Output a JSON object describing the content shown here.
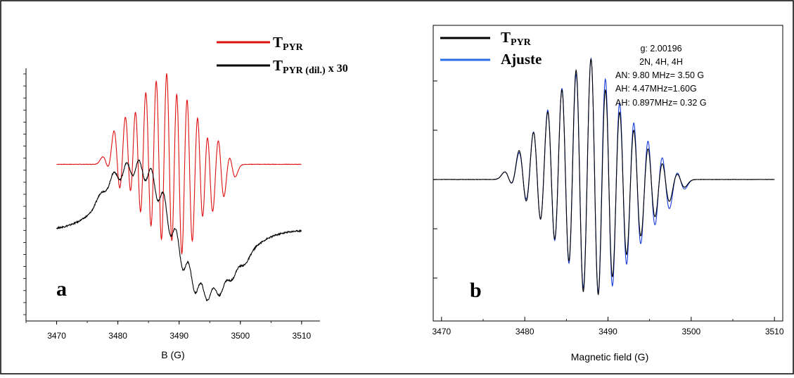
{
  "colors": {
    "red": "#e01010",
    "black": "#000000",
    "blue": "#1a3fd6",
    "legend_blue": "#2a6fe8"
  },
  "chart_data": [
    {
      "type": "line",
      "panel_label": "a",
      "title": "",
      "xlabel": "B (G)",
      "ylabel": "",
      "xlim": [
        3465,
        3513
      ],
      "xticks": [
        3470,
        3480,
        3490,
        3500,
        3510
      ],
      "xtick_labels": [
        "3470",
        "3480",
        "3490",
        "3500",
        "3510"
      ],
      "grid": false,
      "legend_position": "top-right",
      "series": [
        {
          "name": "T_PYR",
          "legend_main": "T",
          "legend_sub": "PYR",
          "legend_suffix": "",
          "color": "#e01010",
          "baseline": 0.62,
          "x": [
            3470,
            3477,
            3478.1,
            3479.9,
            3481.7,
            3483.3,
            3485.0,
            3486.7,
            3488.4,
            3490.0,
            3491.7,
            3493.4,
            3495.0,
            3496.8,
            3498.6,
            3506,
            3510
          ],
          "amplitude": [
            0,
            0,
            0.03,
            0.14,
            0.22,
            0.3,
            0.38,
            0.45,
            0.5,
            0.48,
            0.4,
            0.3,
            0.22,
            0.14,
            0.05,
            0,
            0
          ]
        },
        {
          "name": "T_PYR (dil.) x 30",
          "legend_main": "T",
          "legend_sub": "PYR (dil.)",
          "legend_suffix": " x 30",
          "color": "#000000",
          "baseline": 0.36,
          "x": [
            3470,
            3476,
            3478,
            3480,
            3482,
            3484,
            3486,
            3488,
            3490,
            3492,
            3494,
            3496,
            3498,
            3500,
            3502,
            3506,
            3510
          ],
          "amplitude": [
            0,
            0,
            0.04,
            0.1,
            0.14,
            0.17,
            0.2,
            0.22,
            0.21,
            0.18,
            0.14,
            0.1,
            0.06,
            0.03,
            0,
            0,
            0
          ]
        }
      ]
    },
    {
      "type": "line",
      "panel_label": "b",
      "title": "",
      "xlabel": "Magnetic field (G)",
      "ylabel": "",
      "xlim": [
        3469,
        3511
      ],
      "xticks": [
        3470,
        3480,
        3490,
        3500,
        3510
      ],
      "xtick_labels": [
        "3470",
        "3480",
        "3490",
        "3500",
        "3510"
      ],
      "grid": false,
      "legend_position": "top-left",
      "annotation": [
        "g:  2.00196",
        "2N, 4H, 4H",
        "AN:  9.80 MHz= 3.50 G",
        "AH:  4.47MHz=1.60G",
        "AH:  0.897MHz= 0.32 G"
      ],
      "series": [
        {
          "name": "T_PYR",
          "legend_main": "T",
          "legend_sub": "PYR",
          "legend_suffix": "",
          "color": "#000000",
          "x": [
            3478.1,
            3479.8,
            3481.5,
            3483.2,
            3484.9,
            3486.6,
            3488.4,
            3490.1,
            3491.8,
            3493.5,
            3495.2,
            3496.9,
            3498.7
          ],
          "amplitude": [
            0.04,
            0.16,
            0.28,
            0.41,
            0.55,
            0.68,
            0.72,
            0.6,
            0.46,
            0.34,
            0.22,
            0.12,
            0.04
          ]
        },
        {
          "name": "Ajuste",
          "legend_main": "Ajuste",
          "legend_sub": "",
          "legend_suffix": "",
          "color": "#1a3fd6",
          "x": [
            3478.1,
            3479.8,
            3481.5,
            3483.2,
            3484.9,
            3486.6,
            3488.4,
            3490.1,
            3491.8,
            3493.5,
            3495.2,
            3496.9,
            3498.7
          ],
          "amplitude": [
            0.04,
            0.15,
            0.28,
            0.42,
            0.56,
            0.66,
            0.72,
            0.66,
            0.52,
            0.39,
            0.27,
            0.16,
            0.05
          ]
        }
      ]
    }
  ]
}
